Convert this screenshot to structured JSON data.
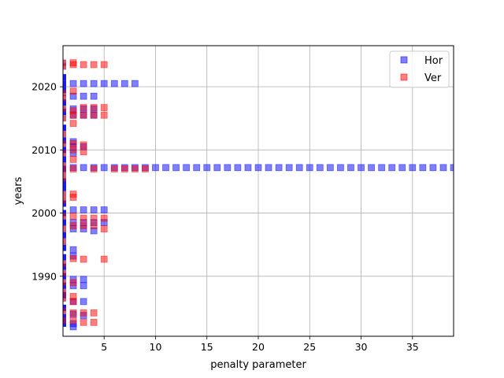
{
  "chart_data": {
    "type": "scatter",
    "title": "",
    "xlabel": "penalty parameter",
    "ylabel": "years",
    "xlim": [
      1,
      39
    ],
    "ylim": [
      1980.5,
      2026.5
    ],
    "xticks": [
      5,
      10,
      15,
      20,
      25,
      30,
      35
    ],
    "yticks": [
      1990,
      2000,
      2010,
      2020
    ],
    "grid": true,
    "legend": {
      "position": "top-right"
    },
    "series": [
      {
        "name": "Hor",
        "color": "#0000ff",
        "alpha": 0.5,
        "marker": "square",
        "points": [
          [
            2,
            2020.5
          ],
          [
            3,
            2020.5
          ],
          [
            4,
            2020.5
          ],
          [
            5,
            2020.5
          ],
          [
            6,
            2020.5
          ],
          [
            7,
            2020.5
          ],
          [
            8,
            2020.5
          ],
          [
            2,
            2018.5
          ],
          [
            3,
            2018.5
          ],
          [
            4,
            2018.5
          ],
          [
            2,
            2016.5
          ],
          [
            3,
            2016.5
          ],
          [
            4,
            2016.5
          ],
          [
            2,
            2015.5
          ],
          [
            3,
            2015.5
          ],
          [
            4,
            2015.5
          ],
          [
            2,
            2011.3
          ],
          [
            2,
            2010.5
          ],
          [
            2,
            2009.5
          ],
          [
            3,
            2010.5
          ],
          [
            2,
            2007.2
          ],
          [
            3,
            2007.2
          ],
          [
            4,
            2007.2
          ],
          [
            5,
            2007.2
          ],
          [
            6,
            2007.2
          ],
          [
            7,
            2007.2
          ],
          [
            8,
            2007.2
          ],
          [
            9,
            2007.2
          ],
          [
            10,
            2007.2
          ],
          [
            11,
            2007.2
          ],
          [
            12,
            2007.2
          ],
          [
            13,
            2007.2
          ],
          [
            14,
            2007.2
          ],
          [
            15,
            2007.2
          ],
          [
            16,
            2007.2
          ],
          [
            17,
            2007.2
          ],
          [
            18,
            2007.2
          ],
          [
            19,
            2007.2
          ],
          [
            20,
            2007.2
          ],
          [
            21,
            2007.2
          ],
          [
            22,
            2007.2
          ],
          [
            23,
            2007.2
          ],
          [
            24,
            2007.2
          ],
          [
            25,
            2007.2
          ],
          [
            26,
            2007.2
          ],
          [
            27,
            2007.2
          ],
          [
            28,
            2007.2
          ],
          [
            29,
            2007.2
          ],
          [
            30,
            2007.2
          ],
          [
            31,
            2007.2
          ],
          [
            32,
            2007.2
          ],
          [
            33,
            2007.2
          ],
          [
            34,
            2007.2
          ],
          [
            35,
            2007.2
          ],
          [
            36,
            2007.2
          ],
          [
            37,
            2007.2
          ],
          [
            38,
            2007.2
          ],
          [
            39,
            2007.2
          ],
          [
            2,
            2000.5
          ],
          [
            3,
            2000.5
          ],
          [
            4,
            2000.5
          ],
          [
            5,
            2000.5
          ],
          [
            2,
            1998.5
          ],
          [
            3,
            1998.5
          ],
          [
            4,
            1998.5
          ],
          [
            5,
            1998.5
          ],
          [
            2,
            1997.5
          ],
          [
            3,
            1997.5
          ],
          [
            4,
            1997.2
          ],
          [
            2,
            1994.2
          ],
          [
            2,
            1993.2
          ],
          [
            2,
            1989.5
          ],
          [
            3,
            1989.5
          ],
          [
            2,
            1988.5
          ],
          [
            3,
            1988.5
          ],
          [
            2,
            1986.0
          ],
          [
            3,
            1986.0
          ],
          [
            2,
            1984.0
          ],
          [
            3,
            1983.8
          ],
          [
            2,
            1982.5
          ],
          [
            2,
            1982.0
          ]
        ]
      },
      {
        "name": "Ver",
        "color": "#ff0000",
        "alpha": 0.5,
        "marker": "square",
        "points": [
          [
            2,
            2023.8
          ],
          [
            2,
            2023.5
          ],
          [
            3,
            2023.5
          ],
          [
            4,
            2023.5
          ],
          [
            5,
            2023.5
          ],
          [
            2,
            2019.3
          ],
          [
            2,
            2016.2
          ],
          [
            3,
            2016.7
          ],
          [
            4,
            2016.7
          ],
          [
            5,
            2016.7
          ],
          [
            2,
            2015.5
          ],
          [
            3,
            2015.5
          ],
          [
            4,
            2015.5
          ],
          [
            5,
            2015.5
          ],
          [
            2,
            2014.2
          ],
          [
            2,
            2011.0
          ],
          [
            3,
            2010.8
          ],
          [
            2,
            2010.0
          ],
          [
            3,
            2009.7
          ],
          [
            2,
            2008.5
          ],
          [
            2,
            2007.0
          ],
          [
            4,
            2007.0
          ],
          [
            6,
            2007.0
          ],
          [
            7,
            2007.0
          ],
          [
            8,
            2007.0
          ],
          [
            9,
            2007.0
          ],
          [
            2,
            2003.0
          ],
          [
            2,
            2002.5
          ],
          [
            2,
            1999.5
          ],
          [
            3,
            1999.2
          ],
          [
            4,
            1999.2
          ],
          [
            5,
            1999.2
          ],
          [
            2,
            1998.0
          ],
          [
            3,
            1998.0
          ],
          [
            4,
            1998.0
          ],
          [
            5,
            1997.5
          ],
          [
            2,
            1992.8
          ],
          [
            3,
            1992.7
          ],
          [
            5,
            1992.7
          ],
          [
            2,
            1989.0
          ],
          [
            2,
            1986.8
          ],
          [
            2,
            1986.0
          ],
          [
            2,
            1984.2
          ],
          [
            3,
            1984.2
          ],
          [
            4,
            1984.2
          ],
          [
            2,
            1983.0
          ],
          [
            3,
            1982.7
          ],
          [
            4,
            1982.7
          ]
        ]
      },
      {
        "name": "",
        "color": "#0000ff",
        "alpha": 0.9,
        "marker": "edge-band",
        "points": [
          [
            1,
            2021.5
          ],
          [
            1,
            2020.5
          ],
          [
            1,
            2019.5
          ],
          [
            1,
            2017.5
          ],
          [
            1,
            2016.0
          ],
          [
            1,
            2013.5
          ],
          [
            1,
            2011.5
          ],
          [
            1,
            2010.0
          ],
          [
            1,
            2008.5
          ],
          [
            1,
            2007.0
          ],
          [
            1,
            2005.0
          ],
          [
            1,
            2004.0
          ],
          [
            1,
            2001.5
          ],
          [
            1,
            2000.0
          ],
          [
            1,
            1998.5
          ],
          [
            1,
            1996.5
          ],
          [
            1,
            1994.5
          ],
          [
            1,
            1993.0
          ],
          [
            1,
            1991.5
          ],
          [
            1,
            1990.0
          ],
          [
            1,
            1988.5
          ],
          [
            1,
            1987.0
          ],
          [
            1,
            1985.0
          ],
          [
            1,
            1983.5
          ],
          [
            1,
            1982.5
          ]
        ]
      },
      {
        "name": "",
        "color": "#c0103a",
        "alpha": 0.7,
        "marker": "edge-band",
        "points": [
          [
            1,
            2023.8
          ],
          [
            1,
            2023.2
          ],
          [
            1,
            2019.0
          ],
          [
            1,
            2018.2
          ],
          [
            1,
            2016.5
          ],
          [
            1,
            2015.0
          ],
          [
            1,
            2012.5
          ],
          [
            1,
            2011.0
          ],
          [
            1,
            2009.5
          ],
          [
            1,
            2007.5
          ],
          [
            1,
            2006.5
          ],
          [
            1,
            2005.5
          ],
          [
            1,
            2003.0
          ],
          [
            1,
            2002.0
          ],
          [
            1,
            1999.5
          ],
          [
            1,
            1997.5
          ],
          [
            1,
            1995.5
          ],
          [
            1,
            1992.0
          ],
          [
            1,
            1990.5
          ],
          [
            1,
            1989.0
          ],
          [
            1,
            1987.5
          ],
          [
            1,
            1986.5
          ],
          [
            1,
            1984.5
          ],
          [
            1,
            1983.0
          ]
        ]
      }
    ]
  }
}
